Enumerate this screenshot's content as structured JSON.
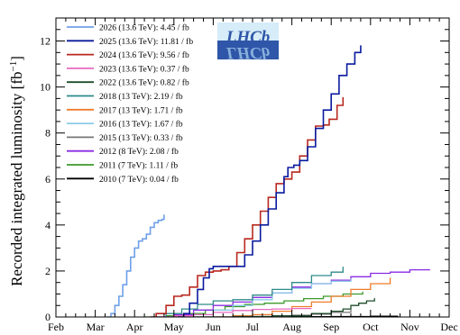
{
  "chart_data": {
    "type": "line",
    "ylabel": "Recorded integrated luminosity [fb",
    "ylabel_sup": "−1",
    "ylabel_close": "]",
    "xlabel": "",
    "x_ticks": [
      "Feb",
      "Mar",
      "Apr",
      "May",
      "Jun",
      "Jul",
      "Aug",
      "Sep",
      "Oct",
      "Nov",
      "Dec"
    ],
    "x_range": [
      "Feb",
      "Dec"
    ],
    "y_ticks": [
      "0",
      "2",
      "4",
      "6",
      "8",
      "10",
      "12"
    ],
    "ylim": [
      0,
      13
    ],
    "grid": false,
    "legend_position": "top-left",
    "logo_text": "LHCb",
    "series": [
      {
        "name": "2026 (13.6 TeV): 4.45 / fb",
        "color": "#6fa0e8",
        "width": 1.6,
        "points": [
          [
            1.3,
            0
          ],
          [
            1.4,
            0.15
          ],
          [
            1.5,
            0.5
          ],
          [
            1.6,
            0.9
          ],
          [
            1.7,
            1.4
          ],
          [
            1.8,
            2.0
          ],
          [
            1.9,
            2.6
          ],
          [
            2.0,
            3.0
          ],
          [
            2.1,
            3.3
          ],
          [
            2.2,
            3.4
          ],
          [
            2.3,
            3.6
          ],
          [
            2.4,
            3.9
          ],
          [
            2.5,
            4.1
          ],
          [
            2.6,
            4.2
          ],
          [
            2.7,
            4.25
          ],
          [
            2.75,
            4.45
          ]
        ]
      },
      {
        "name": "2025 (13.6 TeV): 11.81 / fb",
        "color": "#0a1a9e",
        "width": 1.6,
        "points": [
          [
            3.1,
            0
          ],
          [
            3.25,
            0.15
          ],
          [
            3.4,
            0.6
          ],
          [
            3.6,
            1.2
          ],
          [
            3.75,
            1.7
          ],
          [
            3.9,
            2.1
          ],
          [
            4.0,
            2.2
          ],
          [
            4.3,
            2.2
          ],
          [
            4.65,
            2.2
          ],
          [
            4.8,
            2.7
          ],
          [
            5.0,
            3.3
          ],
          [
            5.2,
            4.0
          ],
          [
            5.4,
            4.7
          ],
          [
            5.6,
            5.4
          ],
          [
            5.8,
            6.1
          ],
          [
            5.9,
            6.5
          ],
          [
            6.05,
            6.6
          ],
          [
            6.2,
            6.8
          ],
          [
            6.4,
            7.4
          ],
          [
            6.6,
            8.2
          ],
          [
            6.8,
            9.0
          ],
          [
            7.0,
            9.7
          ],
          [
            7.2,
            10.5
          ],
          [
            7.4,
            11.0
          ],
          [
            7.6,
            11.5
          ],
          [
            7.75,
            11.81
          ]
        ]
      },
      {
        "name": "2024 (13.6 TeV): 9.56 / fb",
        "color": "#b8281e",
        "width": 1.6,
        "points": [
          [
            2.4,
            0
          ],
          [
            2.55,
            0.15
          ],
          [
            2.8,
            0.5
          ],
          [
            3.0,
            0.9
          ],
          [
            3.2,
            0.95
          ],
          [
            3.4,
            1.3
          ],
          [
            3.6,
            1.8
          ],
          [
            3.8,
            1.95
          ],
          [
            4.0,
            2.0
          ],
          [
            4.2,
            2.05
          ],
          [
            4.4,
            2.2
          ],
          [
            4.6,
            2.8
          ],
          [
            4.8,
            3.4
          ],
          [
            5.0,
            4.0
          ],
          [
            5.2,
            4.6
          ],
          [
            5.4,
            5.2
          ],
          [
            5.6,
            5.8
          ],
          [
            5.8,
            6.0
          ],
          [
            6.0,
            6.3
          ],
          [
            6.2,
            7.0
          ],
          [
            6.4,
            7.7
          ],
          [
            6.6,
            8.3
          ],
          [
            6.8,
            8.35
          ],
          [
            6.95,
            8.6
          ],
          [
            7.15,
            9.2
          ],
          [
            7.3,
            9.56
          ]
        ]
      },
      {
        "name": "2023 (13.6 TeV): 0.37 / fb",
        "color": "#e86ac0",
        "width": 1.3,
        "points": [
          [
            2.6,
            0
          ],
          [
            3.0,
            0.05
          ],
          [
            3.5,
            0.1
          ],
          [
            4.0,
            0.2
          ],
          [
            4.5,
            0.28
          ],
          [
            5.0,
            0.33
          ],
          [
            5.5,
            0.35
          ],
          [
            6.0,
            0.37
          ],
          [
            6.5,
            0.37
          ]
        ]
      },
      {
        "name": "2022 (13.6 TeV): 0.82 / fb",
        "color": "#1e4d2b",
        "width": 1.3,
        "points": [
          [
            3.5,
            0
          ],
          [
            4.5,
            0.02
          ],
          [
            5.5,
            0.05
          ],
          [
            6.5,
            0.15
          ],
          [
            7.0,
            0.25
          ],
          [
            7.3,
            0.35
          ],
          [
            7.5,
            0.5
          ],
          [
            7.7,
            0.6
          ],
          [
            7.9,
            0.7
          ],
          [
            8.1,
            0.82
          ]
        ]
      },
      {
        "name": "2018 (13 TeV): 2.19 / fb",
        "color": "#2e8a8a",
        "width": 1.3,
        "points": [
          [
            2.4,
            0
          ],
          [
            2.8,
            0.15
          ],
          [
            3.2,
            0.35
          ],
          [
            3.6,
            0.55
          ],
          [
            4.0,
            0.7
          ],
          [
            4.5,
            0.75
          ],
          [
            5.0,
            0.95
          ],
          [
            5.5,
            1.2
          ],
          [
            6.0,
            1.5
          ],
          [
            6.5,
            1.8
          ],
          [
            7.0,
            1.95
          ],
          [
            7.3,
            2.19
          ]
        ]
      },
      {
        "name": "2017 (13 TeV): 1.71 / fb",
        "color": "#ef7c2c",
        "width": 1.3,
        "points": [
          [
            4.0,
            0
          ],
          [
            4.5,
            0.05
          ],
          [
            5.0,
            0.1
          ],
          [
            5.5,
            0.25
          ],
          [
            6.0,
            0.45
          ],
          [
            6.5,
            0.65
          ],
          [
            7.0,
            0.9
          ],
          [
            7.5,
            1.2
          ],
          [
            8.0,
            1.45
          ],
          [
            8.5,
            1.71
          ]
        ]
      },
      {
        "name": "2016 (13 TeV): 1.67 / fb",
        "color": "#8ccbe8",
        "width": 1.3,
        "points": [
          [
            3.0,
            0
          ],
          [
            3.5,
            0.1
          ],
          [
            4.0,
            0.3
          ],
          [
            4.5,
            0.5
          ],
          [
            5.0,
            0.75
          ],
          [
            5.5,
            1.05
          ],
          [
            6.0,
            1.25
          ],
          [
            6.5,
            1.45
          ],
          [
            7.0,
            1.55
          ],
          [
            7.5,
            1.67
          ]
        ]
      },
      {
        "name": "2015 (13 TeV): 0.33 / fb",
        "color": "#777777",
        "width": 1.3,
        "points": [
          [
            4.5,
            0
          ],
          [
            5.0,
            0.02
          ],
          [
            5.5,
            0.05
          ],
          [
            6.0,
            0.08
          ],
          [
            6.5,
            0.12
          ],
          [
            7.0,
            0.2
          ],
          [
            7.5,
            0.33
          ]
        ]
      },
      {
        "name": "2012 (8 TeV): 2.08 / fb",
        "color": "#8a2be2",
        "width": 1.3,
        "points": [
          [
            2.5,
            0
          ],
          [
            3.0,
            0.1
          ],
          [
            3.5,
            0.3
          ],
          [
            4.0,
            0.5
          ],
          [
            4.5,
            0.65
          ],
          [
            5.0,
            0.85
          ],
          [
            5.5,
            1.05
          ],
          [
            6.0,
            1.3
          ],
          [
            6.5,
            1.45
          ],
          [
            7.0,
            1.6
          ],
          [
            7.5,
            1.75
          ],
          [
            8.0,
            1.9
          ],
          [
            8.5,
            1.95
          ],
          [
            9.0,
            2.05
          ],
          [
            9.5,
            2.08
          ]
        ]
      },
      {
        "name": "2011 (7 TeV): 1.11 / fb",
        "color": "#3c9a2a",
        "width": 1.3,
        "points": [
          [
            2.2,
            0
          ],
          [
            2.8,
            0.05
          ],
          [
            3.3,
            0.15
          ],
          [
            3.8,
            0.3
          ],
          [
            4.3,
            0.45
          ],
          [
            4.8,
            0.55
          ],
          [
            5.3,
            0.6
          ],
          [
            5.8,
            0.7
          ],
          [
            6.3,
            0.8
          ],
          [
            6.8,
            0.9
          ],
          [
            7.3,
            1.0
          ],
          [
            7.8,
            1.11
          ]
        ]
      },
      {
        "name": "2010 (7 TeV): 0.04 / fb",
        "color": "#000000",
        "width": 1.3,
        "points": [
          [
            2.8,
            0
          ],
          [
            4.0,
            0
          ],
          [
            5.0,
            0.0
          ],
          [
            6.0,
            0.01
          ],
          [
            7.0,
            0.02
          ],
          [
            8.0,
            0.03
          ],
          [
            8.7,
            0.04
          ]
        ]
      }
    ]
  }
}
